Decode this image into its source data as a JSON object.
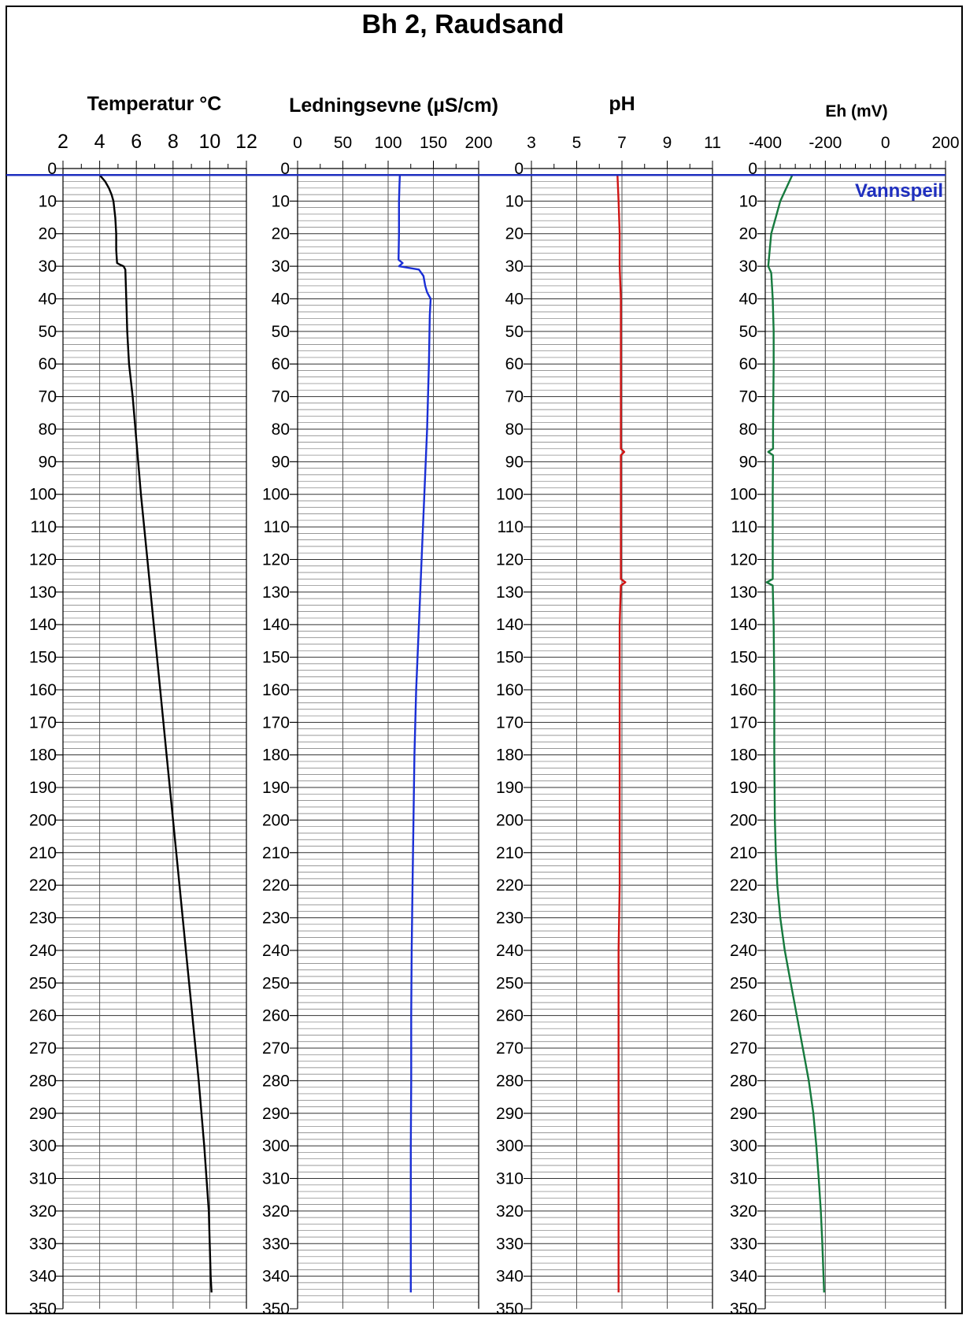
{
  "title": "Bh 2,  Raudsand",
  "water_level_label": "Vannspeil",
  "colors": {
    "frame": "#000000",
    "water_level": "#1f2fbf",
    "temperature": "#000000",
    "conductivity": "#1a2fd6",
    "ph": "#d01515",
    "eh": "#167a3e",
    "grid": "#444444"
  },
  "chart_data": [
    {
      "type": "line",
      "title": "Temperatur °C",
      "xlim": [
        2,
        12
      ],
      "x_ticks": [
        "2",
        "4",
        "6",
        "8",
        "10",
        "12"
      ],
      "x_tick_values": [
        2,
        4,
        6,
        8,
        10,
        12
      ],
      "minor_x_step": 1,
      "ylim": [
        350,
        0
      ],
      "y_ticks": [
        "0",
        "10",
        "20",
        "30",
        "40",
        "50",
        "60",
        "70",
        "80",
        "90",
        "100",
        "110",
        "120",
        "130",
        "140",
        "150",
        "160",
        "170",
        "180",
        "190",
        "200",
        "210",
        "220",
        "230",
        "240",
        "250",
        "260",
        "270",
        "280",
        "290",
        "300",
        "310",
        "320",
        "330",
        "340",
        "350"
      ],
      "grid": true,
      "color_key": "temperature",
      "series": [
        {
          "depth": [
            2,
            3,
            4,
            6,
            8,
            10,
            15,
            20,
            25,
            29,
            29.5,
            30,
            31,
            40,
            50,
            60,
            70,
            80,
            90,
            100,
            120,
            140,
            160,
            180,
            200,
            220,
            240,
            260,
            280,
            300,
            320,
            340,
            345
          ],
          "values": [
            4.0,
            4.15,
            4.3,
            4.5,
            4.65,
            4.75,
            4.85,
            4.9,
            4.9,
            4.95,
            5.1,
            5.3,
            5.4,
            5.45,
            5.5,
            5.6,
            5.8,
            5.95,
            6.1,
            6.25,
            6.6,
            6.95,
            7.3,
            7.65,
            8.0,
            8.35,
            8.7,
            9.05,
            9.4,
            9.7,
            9.95,
            10.05,
            10.1
          ]
        }
      ]
    },
    {
      "type": "line",
      "title": "Ledningsevne  (µS/cm)",
      "xlim": [
        0,
        200
      ],
      "x_ticks": [
        "0",
        "50",
        "100",
        "150",
        "200"
      ],
      "x_tick_values": [
        0,
        50,
        100,
        150,
        200
      ],
      "minor_x_step": 25,
      "ylim": [
        350,
        0
      ],
      "y_ticks": [
        "0",
        "10",
        "20",
        "30",
        "40",
        "50",
        "60",
        "70",
        "80",
        "90",
        "100",
        "110",
        "120",
        "130",
        "140",
        "150",
        "160",
        "170",
        "180",
        "190",
        "200",
        "210",
        "220",
        "230",
        "240",
        "250",
        "260",
        "270",
        "280",
        "290",
        "300",
        "310",
        "320",
        "330",
        "340",
        "350"
      ],
      "grid": true,
      "color_key": "conductivity",
      "series": [
        {
          "depth": [
            2,
            5,
            10,
            20,
            28,
            29,
            30,
            31,
            33,
            36,
            38,
            40,
            45,
            60,
            80,
            100,
            120,
            140,
            160,
            180,
            200,
            220,
            240,
            260,
            280,
            300,
            320,
            340,
            345
          ],
          "values": [
            113,
            112.5,
            112,
            112,
            111.5,
            116,
            112,
            134,
            139,
            141,
            143,
            147,
            146,
            145,
            143,
            140,
            137,
            134,
            131,
            129,
            128,
            127,
            126,
            125.5,
            125.5,
            125,
            125,
            125,
            125
          ]
        }
      ]
    },
    {
      "type": "line",
      "title": "pH",
      "xlim": [
        3,
        11
      ],
      "x_ticks": [
        "3",
        "5",
        "7",
        "9",
        "11"
      ],
      "x_tick_values": [
        3,
        5,
        7,
        9,
        11
      ],
      "minor_x_step": 1,
      "ylim": [
        350,
        0
      ],
      "y_ticks": [
        "0",
        "10",
        "20",
        "30",
        "40",
        "50",
        "60",
        "70",
        "80",
        "90",
        "100",
        "110",
        "120",
        "130",
        "140",
        "150",
        "160",
        "170",
        "180",
        "190",
        "200",
        "210",
        "220",
        "230",
        "240",
        "250",
        "260",
        "270",
        "280",
        "290",
        "300",
        "310",
        "320",
        "330",
        "340",
        "350"
      ],
      "grid": true,
      "color_key": "ph",
      "series": [
        {
          "depth": [
            2,
            10,
            20,
            30,
            40,
            50,
            60,
            70,
            80,
            86,
            87,
            88,
            100,
            120,
            126,
            127,
            128,
            140,
            160,
            180,
            200,
            220,
            240,
            260,
            280,
            300,
            320,
            340,
            345
          ],
          "values": [
            6.8,
            6.85,
            6.9,
            6.9,
            6.95,
            6.95,
            6.95,
            6.95,
            6.95,
            6.95,
            7.1,
            6.95,
            6.95,
            6.95,
            6.95,
            7.15,
            6.95,
            6.9,
            6.9,
            6.9,
            6.9,
            6.9,
            6.85,
            6.85,
            6.85,
            6.85,
            6.85,
            6.85,
            6.85
          ]
        }
      ]
    },
    {
      "type": "line",
      "title": "Eh  (mV)",
      "xlim": [
        -400,
        200
      ],
      "x_ticks": [
        "-400",
        "-200",
        "0",
        "200"
      ],
      "x_tick_values": [
        -400,
        -200,
        0,
        200
      ],
      "minor_x_step": 50,
      "ylim": [
        350,
        0
      ],
      "y_ticks": [
        "0",
        "10",
        "20",
        "30",
        "40",
        "50",
        "60",
        "70",
        "80",
        "90",
        "100",
        "110",
        "120",
        "130",
        "140",
        "150",
        "160",
        "170",
        "180",
        "190",
        "200",
        "210",
        "220",
        "230",
        "240",
        "250",
        "260",
        "270",
        "280",
        "290",
        "300",
        "310",
        "320",
        "330",
        "340",
        "350"
      ],
      "grid": true,
      "color_key": "eh",
      "series": [
        {
          "depth": [
            2,
            5,
            8,
            10,
            15,
            20,
            25,
            30,
            32,
            40,
            50,
            60,
            70,
            80,
            86,
            87,
            88,
            100,
            120,
            126,
            127,
            128,
            140,
            160,
            180,
            200,
            210,
            220,
            230,
            240,
            250,
            260,
            270,
            280,
            290,
            300,
            310,
            320,
            330,
            340,
            345
          ],
          "values": [
            -310,
            -325,
            -340,
            -350,
            -365,
            -380,
            -385,
            -390,
            -380,
            -375,
            -372,
            -372,
            -373,
            -374,
            -374,
            -390,
            -374,
            -375,
            -375,
            -375,
            -395,
            -375,
            -372,
            -370,
            -370,
            -368,
            -365,
            -360,
            -350,
            -335,
            -315,
            -295,
            -275,
            -255,
            -240,
            -230,
            -222,
            -215,
            -210,
            -206,
            -204
          ]
        }
      ]
    }
  ]
}
